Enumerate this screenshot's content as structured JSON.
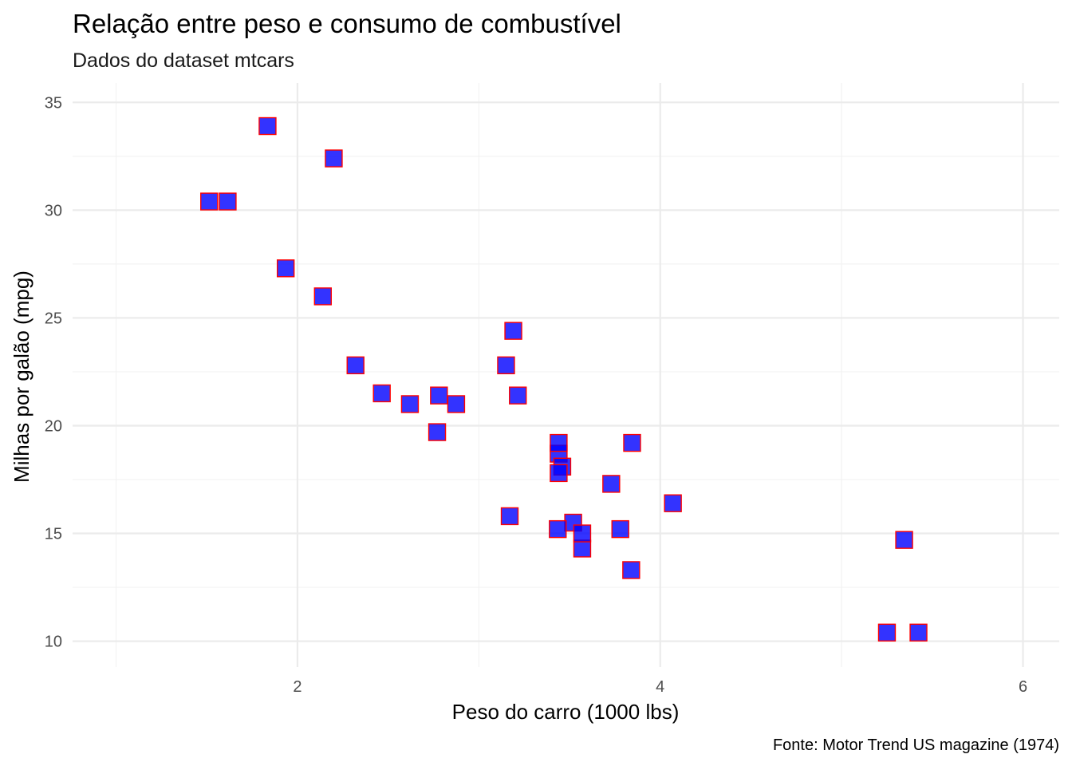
{
  "chart_data": {
    "type": "scatter",
    "title": "Relação entre peso e consumo de combustível",
    "subtitle": "Dados do dataset mtcars",
    "xlabel": "Peso do carro (1000 lbs)",
    "ylabel": "Milhas por galão (mpg)",
    "caption": "Fonte: Motor Trend US magazine (1974)",
    "xlim": [
      0.76,
      6.2
    ],
    "ylim": [
      8.8,
      35.9
    ],
    "xticks": [
      "2",
      "4",
      "6"
    ],
    "xtick_values": [
      2,
      4,
      6
    ],
    "xminor_values": [
      1,
      3,
      5
    ],
    "yticks": [
      "10",
      "15",
      "20",
      "25",
      "30",
      "35"
    ],
    "ytick_values": [
      10,
      15,
      20,
      25,
      30,
      35
    ],
    "yminor_values": [
      12.5,
      17.5,
      22.5,
      27.5,
      32.5
    ],
    "grid": true,
    "legend": "none",
    "marker": "square",
    "point_fill": "#0000ff",
    "point_stroke": "#ff0000",
    "points": [
      {
        "x": 2.62,
        "y": 21.0
      },
      {
        "x": 2.875,
        "y": 21.0
      },
      {
        "x": 2.32,
        "y": 22.8
      },
      {
        "x": 3.215,
        "y": 21.4
      },
      {
        "x": 3.44,
        "y": 18.7
      },
      {
        "x": 3.46,
        "y": 18.1
      },
      {
        "x": 3.57,
        "y": 14.3
      },
      {
        "x": 3.19,
        "y": 24.4
      },
      {
        "x": 3.15,
        "y": 22.8
      },
      {
        "x": 3.44,
        "y": 19.2
      },
      {
        "x": 3.44,
        "y": 17.8
      },
      {
        "x": 4.07,
        "y": 16.4
      },
      {
        "x": 3.73,
        "y": 17.3
      },
      {
        "x": 3.78,
        "y": 15.2
      },
      {
        "x": 5.25,
        "y": 10.4
      },
      {
        "x": 5.424,
        "y": 10.4
      },
      {
        "x": 5.345,
        "y": 14.7
      },
      {
        "x": 2.2,
        "y": 32.4
      },
      {
        "x": 1.615,
        "y": 30.4
      },
      {
        "x": 1.835,
        "y": 33.9
      },
      {
        "x": 2.465,
        "y": 21.5
      },
      {
        "x": 3.52,
        "y": 15.5
      },
      {
        "x": 3.435,
        "y": 15.2
      },
      {
        "x": 3.84,
        "y": 13.3
      },
      {
        "x": 3.845,
        "y": 19.2
      },
      {
        "x": 1.935,
        "y": 27.3
      },
      {
        "x": 2.14,
        "y": 26.0
      },
      {
        "x": 1.513,
        "y": 30.4
      },
      {
        "x": 3.17,
        "y": 15.8
      },
      {
        "x": 2.77,
        "y": 19.7
      },
      {
        "x": 3.57,
        "y": 15.0
      },
      {
        "x": 2.78,
        "y": 21.4
      }
    ]
  }
}
